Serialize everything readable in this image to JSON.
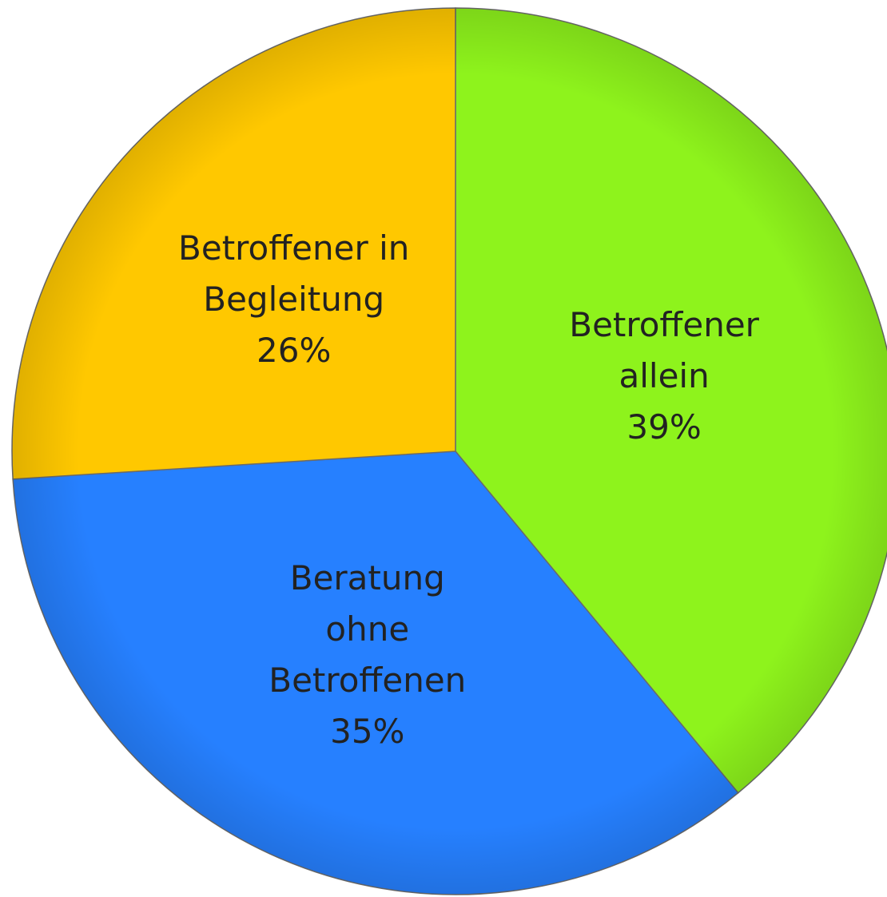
{
  "chart_data": {
    "type": "pie",
    "categories": [
      "Betroffener\nallein",
      "Beratung\nohne\nBetroffenen",
      "Betroffener in\nBegleitung"
    ],
    "values": [
      39,
      35,
      26
    ],
    "value_labels": [
      "39%",
      "35%",
      "26%"
    ],
    "colors": [
      "#8ef31c",
      "#2680ff",
      "#ffc800"
    ]
  }
}
